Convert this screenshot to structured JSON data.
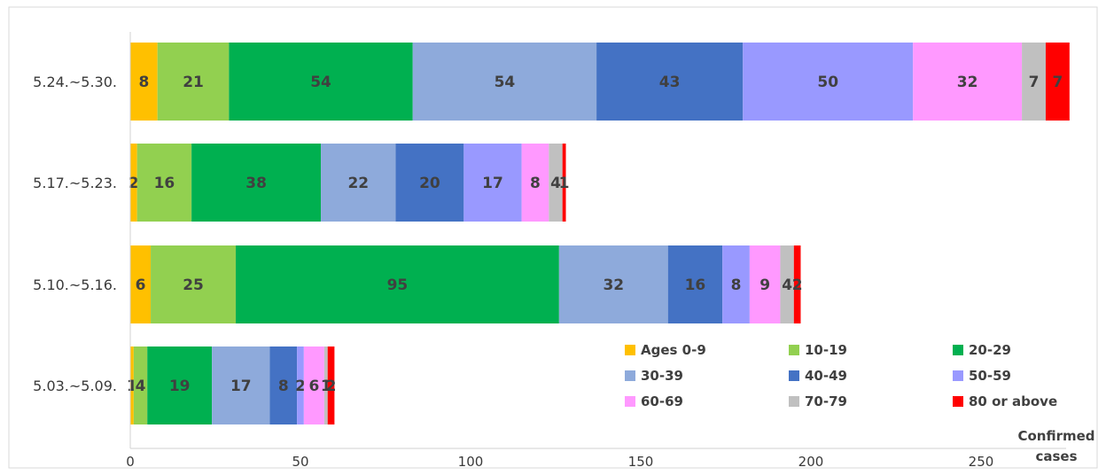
{
  "chart_data": {
    "type": "bar",
    "orientation": "horizontal",
    "stacked": true,
    "categories": [
      "5.24.~5.30.",
      "5.17.~5.23.",
      "5.10.~5.16.",
      "5.03.~5.09."
    ],
    "series": [
      {
        "name": "Ages 0-9",
        "color": "#ffc000",
        "values": [
          8,
          2,
          6,
          1
        ]
      },
      {
        "name": "10-19",
        "color": "#92d050",
        "values": [
          21,
          16,
          25,
          4
        ]
      },
      {
        "name": "20-29",
        "color": "#00b050",
        "values": [
          54,
          38,
          95,
          19
        ]
      },
      {
        "name": "30-39",
        "color": "#8eaadb",
        "values": [
          54,
          22,
          32,
          17
        ]
      },
      {
        "name": "40-49",
        "color": "#4472c4",
        "values": [
          43,
          20,
          16,
          8
        ]
      },
      {
        "name": "50-59",
        "color": "#9999ff",
        "values": [
          50,
          17,
          8,
          2
        ]
      },
      {
        "name": "60-69",
        "color": "#ff99ff",
        "values": [
          32,
          8,
          9,
          6
        ]
      },
      {
        "name": "70-79",
        "color": "#c0c0c0",
        "values": [
          7,
          4,
          4,
          1
        ]
      },
      {
        "name": "80 or above",
        "color": "#ff0000",
        "values": [
          7,
          1,
          2,
          2
        ]
      }
    ],
    "xlim": [
      0,
      275
    ],
    "xticks": [
      0,
      50,
      100,
      150,
      200,
      250
    ],
    "xlabel": "Confirmed\ncases",
    "ylabel": "",
    "title": "",
    "grid": false,
    "legend_position": "bottom-right"
  }
}
